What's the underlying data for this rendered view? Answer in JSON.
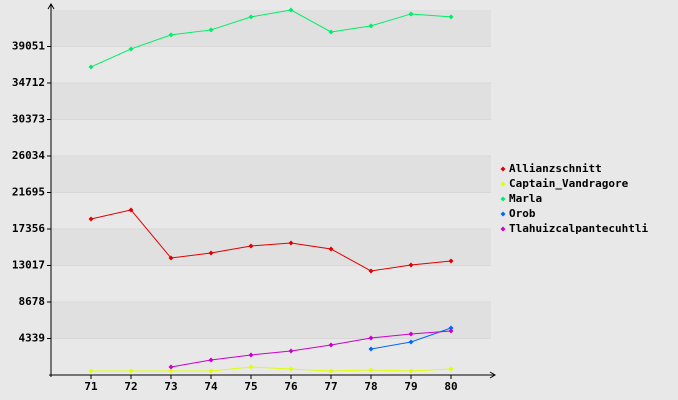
{
  "chart_data": {
    "type": "line",
    "x": [
      71,
      72,
      73,
      74,
      75,
      76,
      77,
      78,
      79,
      80
    ],
    "xlim": [
      70,
      81
    ],
    "xticks": [
      71,
      72,
      73,
      74,
      75,
      76,
      77,
      78,
      79,
      80
    ],
    "ylim": [
      0,
      43390
    ],
    "yticks": [
      4339,
      8678,
      13017,
      17356,
      21695,
      26034,
      30373,
      34712,
      39051
    ],
    "grid": true,
    "legend": "right",
    "series": [
      {
        "name": "Allianzschnitt",
        "color": "#e00000",
        "values": [
          18550,
          19620,
          13910,
          14500,
          15340,
          15690,
          14980,
          12370,
          13080,
          13550
        ]
      },
      {
        "name": "Captain_Vandragore",
        "color": "#ddff00",
        "values": [
          475,
          475,
          475,
          475,
          950,
          710,
          475,
          590,
          475,
          710
        ]
      },
      {
        "name": "Marla",
        "color": "#00ee66",
        "values": [
          36620,
          38760,
          40430,
          41020,
          42570,
          43390,
          40780,
          41500,
          42920,
          42570
        ]
      },
      {
        "name": "Orob",
        "color": "#0066ff",
        "values": [
          null,
          null,
          null,
          null,
          null,
          null,
          null,
          3090,
          3920,
          5590
        ]
      },
      {
        "name": "Tlahuizcalpantecuhtli",
        "color": "#cc00cc",
        "values": [
          null,
          null,
          950,
          1780,
          2380,
          2850,
          3570,
          4400,
          4870,
          5230
        ]
      }
    ]
  }
}
